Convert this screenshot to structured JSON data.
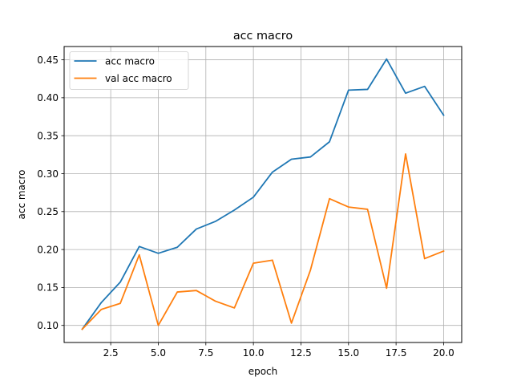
{
  "chart_data": {
    "type": "line",
    "title": "acc macro",
    "xlabel": "epoch",
    "ylabel": "acc macro",
    "xlim": [
      0.05,
      20.95
    ],
    "ylim": [
      0.0775,
      0.4675
    ],
    "xticks": [
      2.5,
      5.0,
      7.5,
      10.0,
      12.5,
      15.0,
      17.5,
      20.0
    ],
    "xtick_labels": [
      "2.5",
      "5.0",
      "7.5",
      "10.0",
      "12.5",
      "15.0",
      "17.5",
      "20.0"
    ],
    "yticks": [
      0.1,
      0.15,
      0.2,
      0.25,
      0.3,
      0.35,
      0.4,
      0.45
    ],
    "ytick_labels": [
      "0.10",
      "0.15",
      "0.20",
      "0.25",
      "0.30",
      "0.35",
      "0.40",
      "0.45"
    ],
    "grid": true,
    "legend_position": "top-left",
    "x": [
      1,
      2,
      3,
      4,
      5,
      6,
      7,
      8,
      9,
      10,
      11,
      12,
      13,
      14,
      15,
      16,
      17,
      18,
      19,
      20
    ],
    "series": [
      {
        "name": "acc macro",
        "color": "#1f77b4",
        "values": [
          0.095,
          0.13,
          0.157,
          0.204,
          0.195,
          0.203,
          0.227,
          0.237,
          0.252,
          0.269,
          0.302,
          0.319,
          0.322,
          0.342,
          0.41,
          0.411,
          0.451,
          0.406,
          0.415,
          0.377
        ]
      },
      {
        "name": "val acc macro",
        "color": "#ff7f0e",
        "values": [
          0.095,
          0.121,
          0.129,
          0.193,
          0.1,
          0.144,
          0.146,
          0.132,
          0.123,
          0.182,
          0.186,
          0.103,
          0.173,
          0.267,
          0.256,
          0.253,
          0.149,
          0.326,
          0.188,
          0.198
        ]
      }
    ]
  }
}
